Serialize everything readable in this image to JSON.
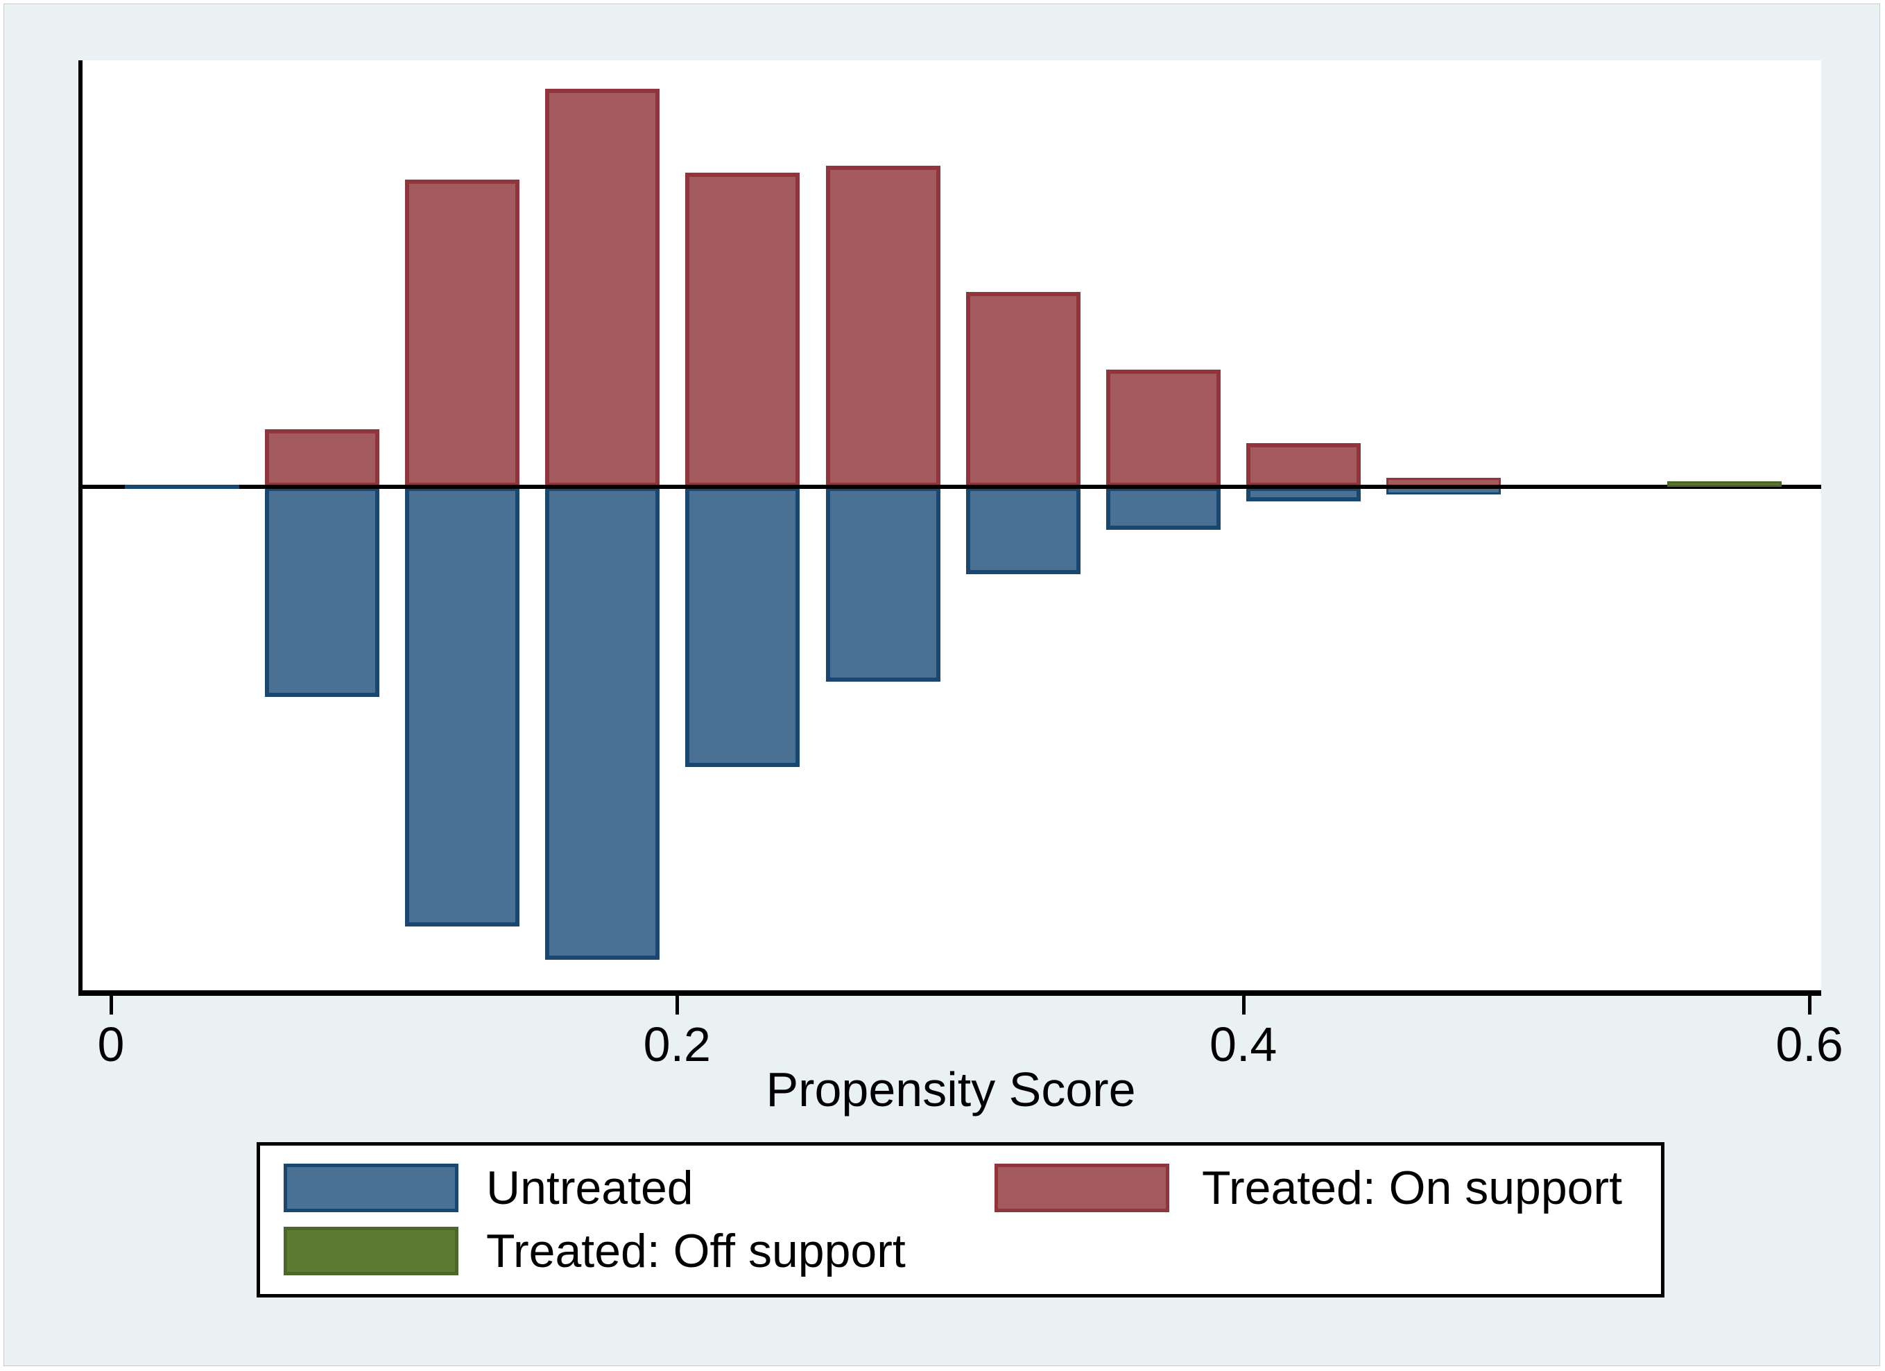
{
  "axis": {
    "title": "Propensity Score",
    "ticks": [
      {
        "value": 0.0,
        "label": "0"
      },
      {
        "value": 0.2,
        "label": "0.2"
      },
      {
        "value": 0.4,
        "label": "0.4"
      },
      {
        "value": 0.6,
        "label": "0.6"
      }
    ]
  },
  "legend": {
    "items": [
      {
        "id": "untreated",
        "label": "Untreated",
        "fill": "#4a7094",
        "border": "#1a476f"
      },
      {
        "id": "treated-on",
        "label": "Treated: On support",
        "fill": "#a35b60",
        "border": "#90353b"
      },
      {
        "id": "treated-off",
        "label": "Treated: Off support",
        "fill": "#5d7b33",
        "border": "#4d6527"
      }
    ]
  },
  "colors": {
    "background": "#eaf1f3",
    "plot_background": "#ffffff",
    "axis": "#000000",
    "untreated_fill": "#4a7094",
    "untreated_border": "#1a476f",
    "treated_on_fill": "#a35b60",
    "treated_on_border": "#90353b",
    "treated_off_fill": "#5d7b33",
    "treated_off_border": "#4d6527"
  },
  "chart_data": {
    "type": "bar",
    "subtype": "mirrored histogram (Stata psgraph common-support plot)",
    "title": "",
    "xlabel": "Propensity Score",
    "ylabel": "",
    "x_range": [
      0,
      0.6
    ],
    "bin_width": 0.05,
    "bin_centers": [
      0.025,
      0.075,
      0.125,
      0.175,
      0.225,
      0.275,
      0.325,
      0.375,
      0.425,
      0.475,
      0.525,
      0.575
    ],
    "y_axis_note": "no y-axis scale shown; heights normalized so tallest 'Treated: On support' bar = 1.0",
    "legend_position": "below plot",
    "grid": false,
    "series": [
      {
        "name": "Treated: On support",
        "direction": "up",
        "values": [
          0,
          0.145,
          0.772,
          1.0,
          0.789,
          0.807,
          0.49,
          0.294,
          0.11,
          0.023,
          0,
          0
        ]
      },
      {
        "name": "Untreated",
        "direction": "down",
        "values": [
          0.01,
          0.528,
          1.104,
          1.188,
          0.704,
          0.49,
          0.22,
          0.108,
          0.037,
          0.019,
          0,
          0
        ]
      },
      {
        "name": "Treated: Off support",
        "direction": "up",
        "values": [
          0,
          0,
          0,
          0,
          0,
          0,
          0,
          0,
          0,
          0,
          0,
          0.014
        ]
      }
    ]
  }
}
